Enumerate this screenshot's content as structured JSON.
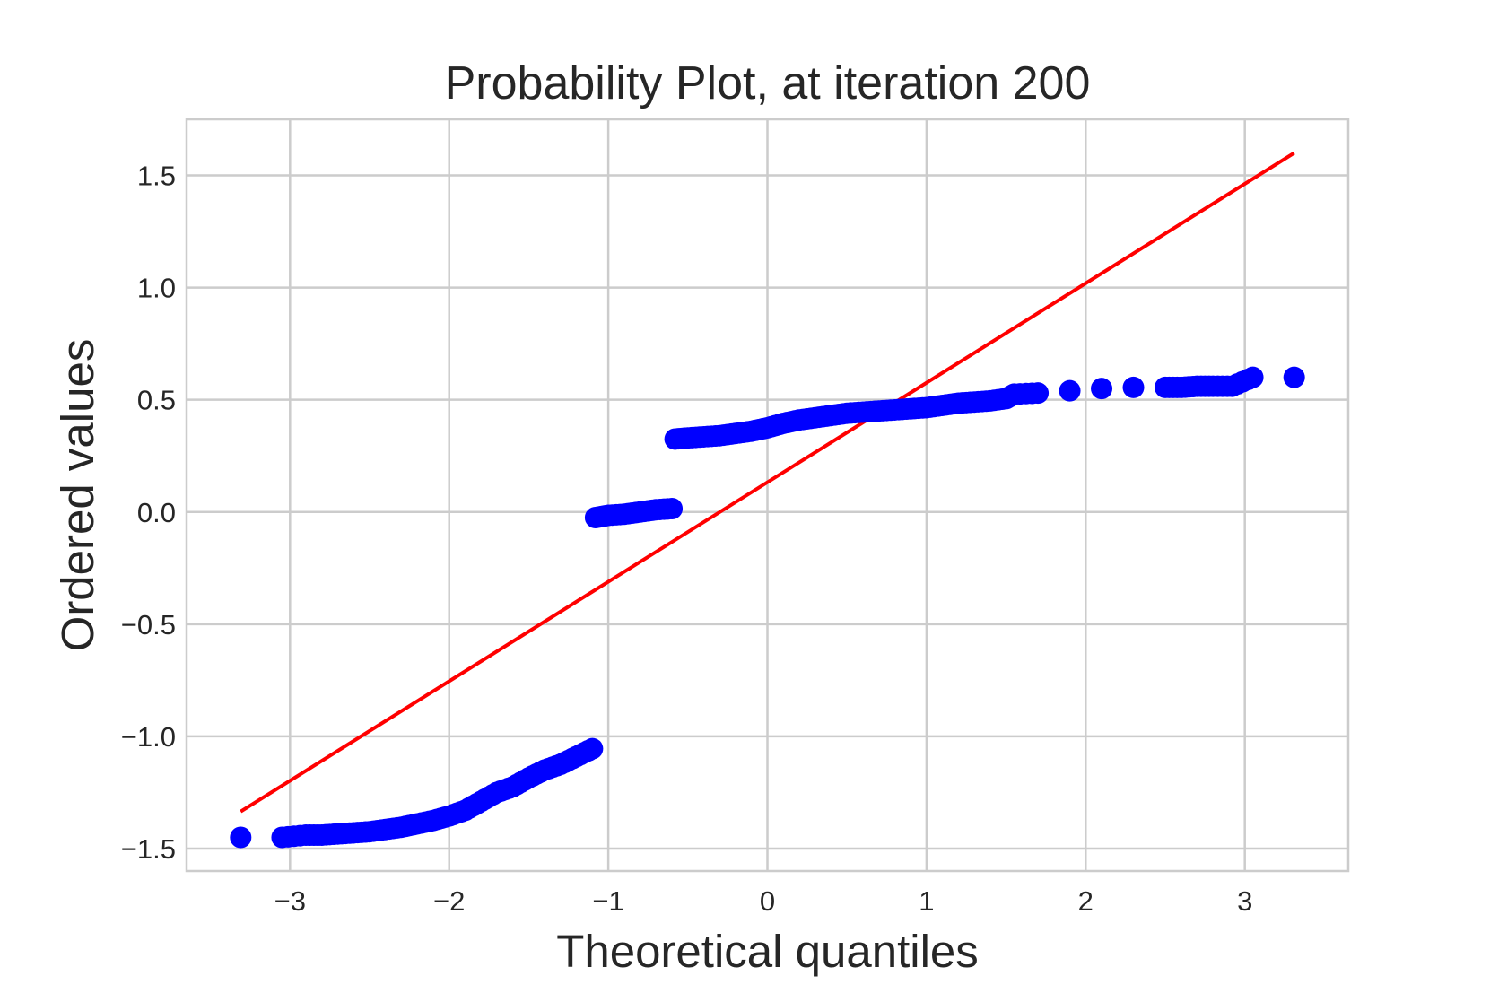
{
  "chart_data": {
    "type": "scatter",
    "title": "Probability Plot, at iteration 200",
    "xlabel": "Theoretical quantiles",
    "ylabel": "Ordered values",
    "xlim": [
      -3.65,
      3.65
    ],
    "ylim": [
      -1.6,
      1.75
    ],
    "grid": true,
    "x_ticks": [
      -3,
      -2,
      -1,
      0,
      1,
      2,
      3
    ],
    "x_tick_labels": [
      "−3",
      "−2",
      "−1",
      "0",
      "1",
      "2",
      "3"
    ],
    "y_ticks": [
      -1.5,
      -1.0,
      -0.5,
      0.0,
      0.5,
      1.0,
      1.5
    ],
    "y_tick_labels": [
      "−1.5",
      "−1.0",
      "−0.5",
      "0.0",
      "0.5",
      "1.0",
      "1.5"
    ],
    "colors": {
      "points": "#0000ff",
      "fit_line": "#ff0000"
    },
    "series": [
      {
        "type": "scatter",
        "points": [
          [
            -3.31,
            -1.45
          ],
          [
            -3.05,
            -1.45
          ],
          [
            -2.9,
            -1.44
          ],
          [
            -2.8,
            -1.44
          ],
          [
            -2.7,
            -1.435
          ],
          [
            -2.6,
            -1.43
          ],
          [
            -2.5,
            -1.425
          ],
          [
            -2.4,
            -1.415
          ],
          [
            -2.3,
            -1.405
          ],
          [
            -2.2,
            -1.39
          ],
          [
            -2.1,
            -1.375
          ],
          [
            -2.0,
            -1.355
          ],
          [
            -1.9,
            -1.33
          ],
          [
            -1.8,
            -1.29
          ],
          [
            -1.7,
            -1.25
          ],
          [
            -1.6,
            -1.225
          ],
          [
            -1.5,
            -1.185
          ],
          [
            -1.4,
            -1.15
          ],
          [
            -1.3,
            -1.125
          ],
          [
            -1.2,
            -1.09
          ],
          [
            -1.1,
            -1.055
          ],
          [
            -1.08,
            -0.025
          ],
          [
            -1.0,
            -0.015
          ],
          [
            -0.9,
            -0.01
          ],
          [
            -0.8,
            -0.0
          ],
          [
            -0.7,
            0.01
          ],
          [
            -0.6,
            0.015
          ],
          [
            -0.58,
            0.325
          ],
          [
            -0.5,
            0.33
          ],
          [
            -0.4,
            0.335
          ],
          [
            -0.3,
            0.34
          ],
          [
            -0.2,
            0.35
          ],
          [
            -0.1,
            0.36
          ],
          [
            0.0,
            0.375
          ],
          [
            0.1,
            0.395
          ],
          [
            0.2,
            0.41
          ],
          [
            0.3,
            0.42
          ],
          [
            0.4,
            0.43
          ],
          [
            0.5,
            0.44
          ],
          [
            0.6,
            0.445
          ],
          [
            0.7,
            0.45
          ],
          [
            0.8,
            0.455
          ],
          [
            0.9,
            0.46
          ],
          [
            1.0,
            0.465
          ],
          [
            1.1,
            0.475
          ],
          [
            1.2,
            0.485
          ],
          [
            1.3,
            0.49
          ],
          [
            1.4,
            0.495
          ],
          [
            1.5,
            0.505
          ],
          [
            1.55,
            0.525
          ],
          [
            1.7,
            0.53
          ],
          [
            1.9,
            0.54
          ],
          [
            2.1,
            0.55
          ],
          [
            2.3,
            0.555
          ],
          [
            2.5,
            0.555
          ],
          [
            2.6,
            0.555
          ],
          [
            2.7,
            0.56
          ],
          [
            2.8,
            0.56
          ],
          [
            2.92,
            0.56
          ],
          [
            3.05,
            0.6
          ],
          [
            3.31,
            0.6
          ]
        ]
      },
      {
        "type": "line",
        "x": [
          -3.31,
          3.31
        ],
        "y": [
          -1.335,
          1.6
        ]
      }
    ]
  }
}
